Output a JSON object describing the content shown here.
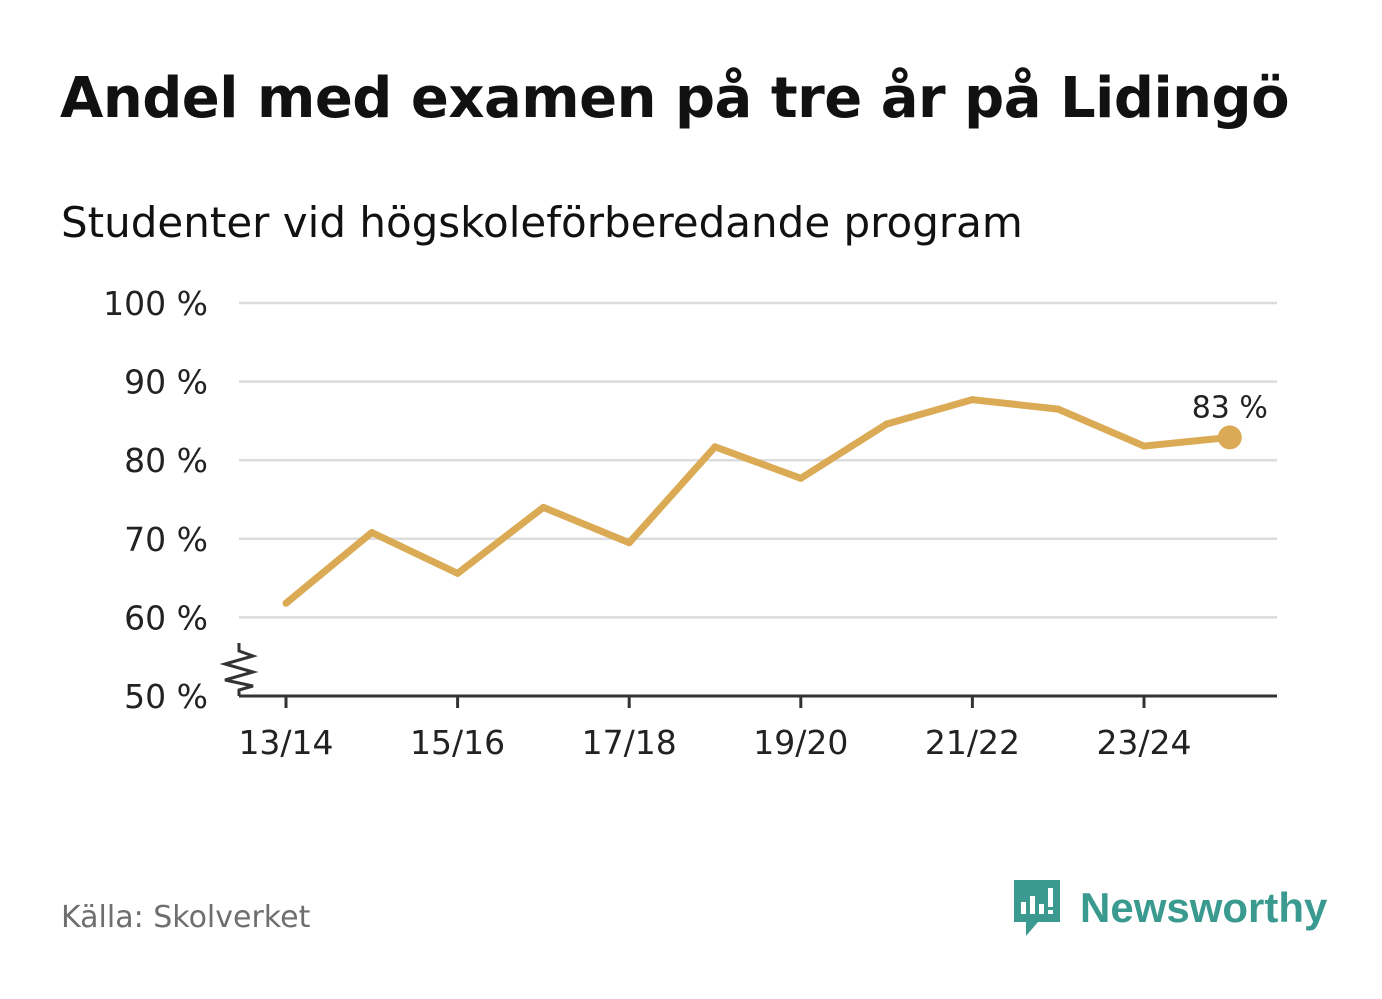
{
  "title": "Andel med examen på tre år på Lidingö",
  "subtitle": "Studenter vid högskoleförberedande program",
  "source": "Källa: Skolverket",
  "brand": {
    "name": "Newsworthy",
    "icon": "newsworthy-logo-icon",
    "color": "#3a9a8f"
  },
  "chart_data": {
    "type": "line",
    "title": "Andel med examen på tre år på Lidingö",
    "subtitle": "Studenter vid högskoleförberedande program",
    "xlabel": "",
    "ylabel": "",
    "categories": [
      "13/14",
      "14/15",
      "15/16",
      "16/17",
      "17/18",
      "18/19",
      "19/20",
      "20/21",
      "21/22",
      "22/23",
      "23/24",
      "24/25"
    ],
    "x_tick_labels": [
      "13/14",
      "15/16",
      "17/18",
      "19/20",
      "21/22",
      "23/24"
    ],
    "series": [
      {
        "name": "Andel med examen på tre år",
        "color": "#dbaa55",
        "values": [
          61.8,
          70.8,
          65.6,
          74.0,
          69.5,
          81.7,
          77.7,
          84.6,
          87.7,
          86.5,
          81.8,
          82.9
        ]
      }
    ],
    "ylim": [
      50,
      100
    ],
    "y_ticks": [
      50,
      60,
      70,
      80,
      90,
      100
    ],
    "y_tick_labels": [
      "50 %",
      "60 %",
      "70 %",
      "80 %",
      "90 %",
      "100 %"
    ],
    "end_label": "83 %",
    "axis_break": true,
    "grid": true
  }
}
